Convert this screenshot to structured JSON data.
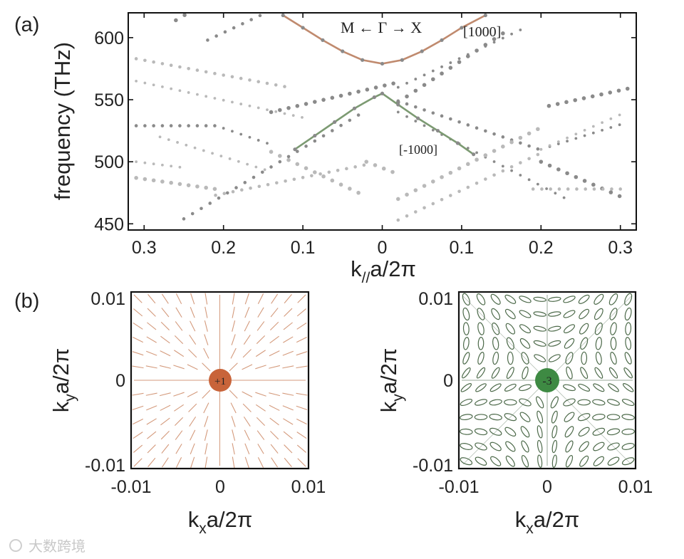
{
  "panels": {
    "a_label": "(a)",
    "b_label": "(b)"
  },
  "chart_data": [
    {
      "id": "band-structure",
      "type": "scatter",
      "title": "",
      "xlabel_main": "k",
      "xlabel_sub": "//",
      "xlabel_rest": "a/2π",
      "ylabel": "frequency (THz)",
      "xlim": [
        -0.32,
        0.32
      ],
      "ylim": [
        445,
        620
      ],
      "x_ticks": [
        -0.3,
        -0.2,
        -0.1,
        0,
        0.1,
        0.2,
        0.3
      ],
      "x_tick_labels": [
        "0.3",
        "0.2",
        "0.1",
        "0",
        "0.1",
        "0.2",
        "0.3"
      ],
      "y_ticks": [
        450,
        500,
        550,
        600
      ],
      "y_tick_labels": [
        "450",
        "500",
        "550",
        "600"
      ],
      "annotations": {
        "direction": "M ← Γ → X",
        "upper_band_label": "[1000]",
        "lower_band_label": "[-1000]"
      },
      "highlight_series": [
        {
          "name": "[1000]",
          "color": "#c08a6e",
          "x": [
            -0.125,
            -0.1,
            -0.075,
            -0.05,
            -0.025,
            0,
            0.025,
            0.05,
            0.075,
            0.1,
            0.13
          ],
          "y": [
            618,
            608,
            598,
            589,
            582,
            579,
            582,
            589,
            598,
            608,
            618
          ]
        },
        {
          "name": "[-1000]",
          "color": "#7c9a72",
          "x": [
            -0.11,
            -0.085,
            -0.06,
            -0.035,
            -0.01,
            0,
            0.02,
            0.045,
            0.07,
            0.095,
            0.115
          ],
          "y": [
            510,
            521,
            532,
            543,
            552,
            555,
            546,
            535,
            525,
            515,
            506
          ]
        }
      ],
      "scatter_bands": [
        {
          "name": "dark-1",
          "color": "#8a8a8a",
          "x0": -0.26,
          "y0": 614,
          "slope": 380,
          "x1": -0.02
        },
        {
          "name": "dark-2",
          "color": "#8a8a8a",
          "x0": -0.22,
          "y0": 598,
          "slope": 300,
          "x1": -0.02
        },
        {
          "name": "dark-3",
          "color": "#8a8a8a",
          "x0": 0.02,
          "y0": 560,
          "slope": 300,
          "x1": 0.18
        },
        {
          "name": "dark-4",
          "color": "#8a8a8a",
          "x0": 0.02,
          "y0": 548,
          "slope": 420,
          "x1": 0.16
        },
        {
          "name": "dark-5",
          "color": "#8a8a8a",
          "x0": -0.31,
          "y0": 529,
          "slope": 0,
          "x1": -0.2
        },
        {
          "name": "dark-6",
          "color": "#8a8a8a",
          "x0": -0.2,
          "y0": 527,
          "slope": -220,
          "x1": -0.14
        },
        {
          "name": "dark-7",
          "color": "#8a8a8a",
          "x0": -0.14,
          "y0": 540,
          "slope": 150,
          "x1": 0.02
        },
        {
          "name": "dark-8",
          "color": "#8a8a8a",
          "x0": 0.02,
          "y0": 549,
          "slope": -220,
          "x1": 0.2
        },
        {
          "name": "dark-9",
          "color": "#8a8a8a",
          "x0": 0.2,
          "y0": 510,
          "slope": 200,
          "x1": 0.31
        },
        {
          "name": "dark-10",
          "color": "#8a8a8a",
          "x0": 0.21,
          "y0": 545,
          "slope": 140,
          "x1": 0.31
        },
        {
          "name": "dark-11",
          "color": "#8a8a8a",
          "x0": -0.25,
          "y0": 454,
          "slope": 380,
          "x1": -0.02
        },
        {
          "name": "dark-12",
          "color": "#8a8a8a",
          "x0": 0.02,
          "y0": 540,
          "slope": -330,
          "x1": 0.23
        },
        {
          "name": "dark-13",
          "color": "#8a8a8a",
          "x0": 0.2,
          "y0": 500,
          "slope": -280,
          "x1": 0.31
        },
        {
          "name": "light-1",
          "color": "#b9b9b9",
          "x0": -0.31,
          "y0": 583,
          "slope": -120,
          "x1": -0.12
        },
        {
          "name": "light-2",
          "color": "#b9b9b9",
          "x0": -0.31,
          "y0": 565,
          "slope": -140,
          "x1": -0.1
        },
        {
          "name": "light-3",
          "color": "#b9b9b9",
          "x0": -0.31,
          "y0": 487,
          "slope": -90,
          "x1": -0.21
        },
        {
          "name": "light-4",
          "color": "#b9b9b9",
          "x0": -0.21,
          "y0": 473,
          "slope": 130,
          "x1": -0.02
        },
        {
          "name": "light-5",
          "color": "#b9b9b9",
          "x0": -0.28,
          "y0": 520,
          "slope": -200,
          "x1": -0.14
        },
        {
          "name": "light-6",
          "color": "#b9b9b9",
          "x0": -0.14,
          "y0": 508,
          "slope": -300,
          "x1": -0.02
        },
        {
          "name": "light-7",
          "color": "#b9b9b9",
          "x0": 0.02,
          "y0": 453,
          "slope": 300,
          "x1": 0.2
        },
        {
          "name": "light-8",
          "color": "#b9b9b9",
          "x0": 0.2,
          "y0": 510,
          "slope": 280,
          "x1": 0.31
        },
        {
          "name": "light-9",
          "color": "#b9b9b9",
          "x0": 0.02,
          "y0": 470,
          "slope": 320,
          "x1": 0.2
        },
        {
          "name": "light-10",
          "color": "#b9b9b9",
          "x0": 0.19,
          "y0": 478,
          "slope": 0,
          "x1": 0.31
        },
        {
          "name": "light-11",
          "color": "#b9b9b9",
          "x0": -0.31,
          "y0": 500,
          "slope": -80,
          "x1": -0.25
        },
        {
          "name": "light-12",
          "color": "#b9b9b9",
          "x0": -0.02,
          "y0": 500,
          "slope": -250,
          "x1": 0.02
        }
      ]
    },
    {
      "id": "vortex-plus-one",
      "type": "vector-field",
      "xlabel_main": "k",
      "xlabel_sub": "x",
      "xlabel_rest": "a/2π",
      "ylabel_main": "k",
      "ylabel_sub": "y",
      "ylabel_rest": "a/2π",
      "xlim": [
        -0.01,
        0.01
      ],
      "ylim": [
        -0.01,
        0.01
      ],
      "x_tick_labels": [
        "-0.01",
        "0",
        "0.01"
      ],
      "y_tick_labels": [
        "-0.01",
        "0",
        "0.01"
      ],
      "charge": 1,
      "charge_label": "+1",
      "color": "#c8643a",
      "line_color": "#d49a7c",
      "grid_n": 13
    },
    {
      "id": "vortex-minus-three",
      "type": "vector-field",
      "xlabel_main": "k",
      "xlabel_sub": "x",
      "xlabel_rest": "a/2π",
      "ylabel_main": "k",
      "ylabel_sub": "y",
      "ylabel_rest": "a/2π",
      "xlim": [
        -0.01,
        0.01
      ],
      "ylim": [
        -0.01,
        0.01
      ],
      "x_tick_labels": [
        "-0.01",
        "0",
        "0.01"
      ],
      "y_tick_labels": [
        "-0.01",
        "0",
        "0.01"
      ],
      "charge": -3,
      "charge_label": "-3",
      "color": "#3e8a43",
      "line_color": "#4d6a4a",
      "grid_n": 12
    }
  ],
  "watermark": "大数跨境"
}
